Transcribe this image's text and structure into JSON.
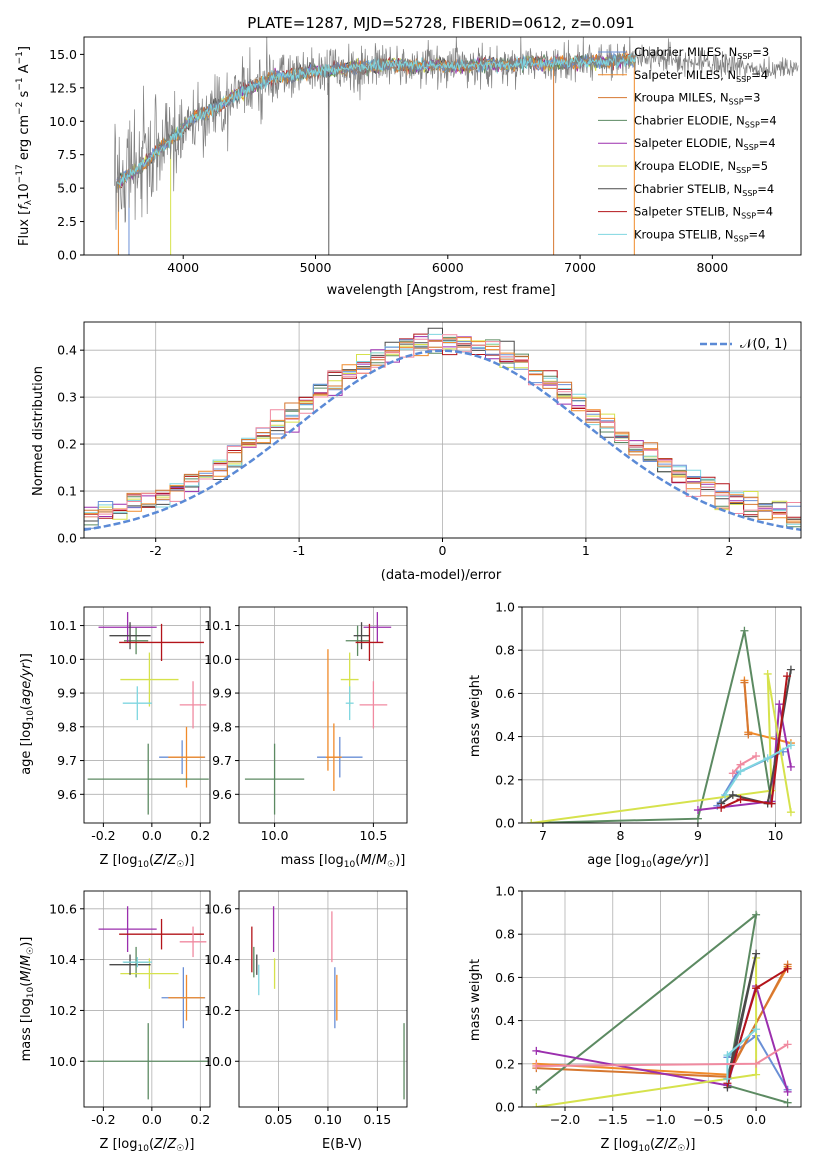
{
  "figure_title": "PLATE=1287, MJD=52728, FIBERID=0612, z=0.091",
  "series_colors": [
    "#6a8fd6",
    "#f08a2a",
    "#d67730",
    "#5c8a62",
    "#9b2fae",
    "#d6e24c",
    "#4a4a4a",
    "#b3141a",
    "#7fd6e0",
    "#f08aa0"
  ],
  "legend": [
    "Chabrier MILES, N_SSP=3",
    "Salpeter MILES, N_SSP=4",
    "Kroupa MILES, N_SSP=3",
    "Chabrier ELODIE, N_SSP=4",
    "Salpeter ELODIE, N_SSP=4",
    "Kroupa ELODIE, N_SSP=5",
    "Chabrier STELIB, N_SSP=4",
    "Salpeter STELIB, N_SSP=4",
    "Kroupa STELIB, N_SSP=4"
  ],
  "panel2_legend": "𝒩(0, 1)",
  "chart_data": [
    {
      "id": "spectrum",
      "type": "line",
      "xlabel": "wavelength [Angstrom, rest frame]",
      "ylabel": "Flux [f_λ 10^-17 erg cm^-2 s^-1 A^-1]",
      "xlim": [
        3250,
        8670
      ],
      "ylim": [
        0,
        16.3
      ],
      "xticks": [
        4000,
        5000,
        6000,
        7000,
        8000
      ],
      "yticks": [
        0.0,
        2.5,
        5.0,
        7.5,
        10.0,
        12.5,
        15.0
      ],
      "data_color": "#808080",
      "data_envelope": {
        "x": [
          3500,
          3700,
          3900,
          4100,
          4300,
          4500,
          4700,
          5000,
          5500,
          6000,
          6500,
          7000,
          7500,
          8000,
          8400
        ],
        "y": [
          5.3,
          6.8,
          8.6,
          10.4,
          11.3,
          12.5,
          13.3,
          13.7,
          14.2,
          14.1,
          14.3,
          14.4,
          14.6,
          14.3,
          13.9
        ],
        "noise": [
          3.5,
          3.2,
          3.0,
          2.4,
          2.0,
          1.8,
          1.7,
          1.5,
          1.3,
          1.3,
          1.2,
          1.2,
          0.9,
          0.7,
          0.6
        ]
      },
      "model_range": [
        3500,
        7420
      ]
    },
    {
      "id": "residuals",
      "type": "line",
      "xlabel": "(data-model)/error",
      "ylabel": "Normed distribution",
      "xlim": [
        -2.5,
        2.5
      ],
      "ylim": [
        0,
        0.46
      ],
      "xticks": [
        -2,
        -1,
        0,
        1,
        2
      ],
      "yticks": [
        0.0,
        0.1,
        0.2,
        0.3,
        0.4
      ],
      "bin_width": 0.1
    },
    {
      "id": "age_vs_Z",
      "type": "scatter",
      "xlabel": "Z [log10(Z/Z☉)]",
      "ylabel": "age  [log10(age/yr)]",
      "xlim": [
        -0.28,
        0.24
      ],
      "ylim": [
        9.515,
        10.155
      ],
      "xticks": [
        -0.2,
        0.0,
        0.2
      ],
      "yticks": [
        9.6,
        9.7,
        9.8,
        9.9,
        10.0,
        10.1
      ],
      "points": [
        {
          "s": 0,
          "x": 0.125,
          "y": 9.71,
          "ex": 0.095,
          "ey": 0.05
        },
        {
          "s": 1,
          "x": 0.143,
          "y": 9.71,
          "ex": 0.075,
          "ey": 0.09
        },
        {
          "s": 3,
          "x": -0.015,
          "y": 9.645,
          "ex": 0.25,
          "ey": 0.105
        },
        {
          "s": 3,
          "x": -0.065,
          "y": 10.055,
          "ex": 0.05,
          "ey": 0.04
        },
        {
          "s": 4,
          "x": -0.1,
          "y": 10.095,
          "ex": 0.12,
          "ey": 0.045
        },
        {
          "s": 5,
          "x": -0.01,
          "y": 9.94,
          "ex": 0.12,
          "ey": 0.08
        },
        {
          "s": 6,
          "x": -0.09,
          "y": 10.07,
          "ex": 0.085,
          "ey": 0.04
        },
        {
          "s": 7,
          "x": 0.04,
          "y": 10.05,
          "ex": 0.175,
          "ey": 0.055
        },
        {
          "s": 8,
          "x": -0.06,
          "y": 9.87,
          "ex": 0.06,
          "ey": 0.05
        },
        {
          "s": 9,
          "x": 0.17,
          "y": 9.865,
          "ex": 0.055,
          "ey": 0.07
        }
      ]
    },
    {
      "id": "age_vs_mass",
      "type": "scatter",
      "xlabel": "mass [log10(M/M☉)]",
      "ylabel": "",
      "xlim": [
        9.82,
        10.67
      ],
      "ylim": [
        9.515,
        10.155
      ],
      "xticks": [
        10.0,
        10.5
      ],
      "yticks": [
        9.6,
        9.7,
        9.8,
        9.9,
        10.0,
        10.1
      ],
      "points": [
        {
          "s": 0,
          "x": 10.33,
          "y": 9.71,
          "ex": 0.115,
          "ey": 0.06
        },
        {
          "s": 1,
          "x": 10.3,
          "y": 9.71,
          "ex": 0.04,
          "ey": 0.1
        },
        {
          "s": 3,
          "x": 10.0,
          "y": 9.645,
          "ex": 0.15,
          "ey": 0.105
        },
        {
          "s": 3,
          "x": 10.42,
          "y": 10.055,
          "ex": 0.06,
          "ey": 0.045
        },
        {
          "s": 4,
          "x": 10.52,
          "y": 10.095,
          "ex": 0.07,
          "ey": 0.045
        },
        {
          "s": 5,
          "x": 10.38,
          "y": 9.94,
          "ex": 0.045,
          "ey": 0.08
        },
        {
          "s": 6,
          "x": 10.44,
          "y": 10.07,
          "ex": 0.04,
          "ey": 0.04
        },
        {
          "s": 7,
          "x": 10.48,
          "y": 10.05,
          "ex": 0.07,
          "ey": 0.055
        },
        {
          "s": 8,
          "x": 10.38,
          "y": 9.87,
          "ex": 0.02,
          "ey": 0.05
        },
        {
          "s": 9,
          "x": 10.5,
          "y": 9.865,
          "ex": 0.07,
          "ey": 0.07
        },
        {
          "s": 1,
          "x": 10.27,
          "y": 9.85,
          "ex": 0.0,
          "ey": 0.18
        }
      ]
    },
    {
      "id": "weight_vs_age",
      "type": "line",
      "xlabel": "age  [log10(age/yr)]",
      "ylabel": "mass weight",
      "xlim": [
        6.73,
        10.33
      ],
      "ylim": [
        0,
        1.0
      ],
      "xticks": [
        7,
        8,
        9,
        10
      ],
      "yticks": [
        0.0,
        0.2,
        0.4,
        0.6,
        0.8,
        1.0
      ],
      "series": [
        {
          "s": 0,
          "x": [
            9.25,
            9.5,
            10.1
          ],
          "y": [
            0.08,
            0.23,
            0.33
          ]
        },
        {
          "s": 1,
          "x": [
            9.6,
            9.65,
            10.2
          ],
          "y": [
            0.66,
            0.42,
            0.37
          ]
        },
        {
          "s": 2,
          "x": [
            9.6,
            9.65
          ],
          "y": [
            0.65,
            0.41
          ]
        },
        {
          "s": 3,
          "x": [
            6.85,
            9.0,
            9.6,
            9.95
          ],
          "y": [
            0.0,
            0.02,
            0.89,
            0.09
          ]
        },
        {
          "s": 4,
          "x": [
            9.0,
            9.95,
            10.05,
            10.2
          ],
          "y": [
            0.06,
            0.1,
            0.55,
            0.26
          ]
        },
        {
          "s": 5,
          "x": [
            6.85,
            9.95,
            9.9,
            10.2
          ],
          "y": [
            0.0,
            0.15,
            0.69,
            0.05
          ]
        },
        {
          "s": 6,
          "x": [
            9.3,
            9.45,
            9.9,
            10.2
          ],
          "y": [
            0.09,
            0.13,
            0.09,
            0.71
          ]
        },
        {
          "s": 7,
          "x": [
            9.3,
            9.55,
            9.95,
            10.15
          ],
          "y": [
            0.07,
            0.11,
            0.09,
            0.68
          ]
        },
        {
          "s": 8,
          "x": [
            9.35,
            9.55,
            9.9,
            10.2
          ],
          "y": [
            0.13,
            0.24,
            0.3,
            0.36
          ]
        },
        {
          "s": 9,
          "x": [
            9.45,
            9.55,
            9.75
          ],
          "y": [
            0.23,
            0.27,
            0.31
          ]
        }
      ]
    },
    {
      "id": "mass_vs_Z",
      "type": "scatter",
      "xlabel": "Z [log10(Z/Z☉)]",
      "ylabel": "mass [log10(M/M☉)]",
      "xlim": [
        -0.28,
        0.24
      ],
      "ylim": [
        9.82,
        10.67
      ],
      "xticks": [
        -0.2,
        0.0,
        0.2
      ],
      "yticks": [
        10.0,
        10.2,
        10.4,
        10.6
      ],
      "points": [
        {
          "s": 0,
          "x": 0.13,
          "y": 10.25,
          "ex": 0.09,
          "ey": 0.12
        },
        {
          "s": 1,
          "x": 0.143,
          "y": 10.25,
          "ex": 0.075,
          "ey": 0.09
        },
        {
          "s": 3,
          "x": -0.015,
          "y": 10.0,
          "ex": 0.25,
          "ey": 0.15
        },
        {
          "s": 3,
          "x": -0.065,
          "y": 10.39,
          "ex": 0.05,
          "ey": 0.06
        },
        {
          "s": 4,
          "x": -0.1,
          "y": 10.52,
          "ex": 0.12,
          "ey": 0.09
        },
        {
          "s": 5,
          "x": -0.01,
          "y": 10.345,
          "ex": 0.12,
          "ey": 0.06
        },
        {
          "s": 6,
          "x": -0.09,
          "y": 10.38,
          "ex": 0.085,
          "ey": 0.04
        },
        {
          "s": 7,
          "x": 0.04,
          "y": 10.5,
          "ex": 0.175,
          "ey": 0.06
        },
        {
          "s": 8,
          "x": -0.06,
          "y": 10.39,
          "ex": 0.06,
          "ey": 0.02
        },
        {
          "s": 9,
          "x": 0.17,
          "y": 10.47,
          "ex": 0.055,
          "ey": 0.06
        }
      ]
    },
    {
      "id": "mass_vs_EBV",
      "type": "scatter",
      "xlabel": "E(B-V)",
      "ylabel": "",
      "xlim": [
        0.01,
        0.18
      ],
      "ylim": [
        9.82,
        10.67
      ],
      "xticks": [
        0.05,
        0.1,
        0.15
      ],
      "yticks": [
        10.0,
        10.2,
        10.4,
        10.6
      ],
      "points": [
        {
          "s": 0,
          "x": 0.107,
          "y": 10.25,
          "ey": 0.12
        },
        {
          "s": 1,
          "x": 0.109,
          "y": 10.25,
          "ey": 0.09
        },
        {
          "s": 3,
          "x": 0.177,
          "y": 10.0,
          "ey": 0.15
        },
        {
          "s": 3,
          "x": 0.025,
          "y": 10.39,
          "ey": 0.06
        },
        {
          "s": 4,
          "x": 0.045,
          "y": 10.52,
          "ey": 0.09
        },
        {
          "s": 5,
          "x": 0.046,
          "y": 10.345,
          "ey": 0.06
        },
        {
          "s": 6,
          "x": 0.028,
          "y": 10.38,
          "ey": 0.04
        },
        {
          "s": 7,
          "x": 0.023,
          "y": 10.44,
          "ey": 0.09
        },
        {
          "s": 8,
          "x": 0.03,
          "y": 10.32,
          "ey": 0.06
        },
        {
          "s": 9,
          "x": 0.104,
          "y": 10.49,
          "ey": 0.1
        }
      ]
    },
    {
      "id": "weight_vs_Z",
      "type": "line",
      "xlabel": "Z [log10(Z/Z☉)]",
      "ylabel": "mass weight",
      "xlim": [
        -2.45,
        0.47
      ],
      "ylim": [
        0,
        1.0
      ],
      "xticks": [
        -2.0,
        -1.5,
        -1.0,
        -0.5,
        0.0
      ],
      "yticks": [
        0.0,
        0.2,
        0.4,
        0.6,
        0.8,
        1.0
      ],
      "series": [
        {
          "s": 0,
          "x": [
            -0.3,
            0.0,
            0.33
          ],
          "y": [
            0.23,
            0.33,
            0.08
          ]
        },
        {
          "s": 1,
          "x": [
            -2.3,
            -0.3,
            0.33
          ],
          "y": [
            0.2,
            0.15,
            0.65
          ]
        },
        {
          "s": 2,
          "x": [
            -2.3,
            -0.3,
            0.33
          ],
          "y": [
            0.18,
            0.14,
            0.66
          ]
        },
        {
          "s": 3,
          "x": [
            -2.3,
            0.0,
            -0.3,
            0.33
          ],
          "y": [
            0.08,
            0.89,
            0.1,
            0.02
          ]
        },
        {
          "s": 4,
          "x": [
            -2.3,
            -0.3,
            0.0,
            0.33
          ],
          "y": [
            0.26,
            0.1,
            0.56,
            0.07
          ]
        },
        {
          "s": 5,
          "x": [
            -2.3,
            0.0,
            0.0
          ],
          "y": [
            0.0,
            0.15,
            0.69
          ]
        },
        {
          "s": 6,
          "x": [
            -0.3,
            0.0,
            -0.3
          ],
          "y": [
            0.09,
            0.71,
            0.13
          ]
        },
        {
          "s": 7,
          "x": [
            -0.3,
            0.0,
            0.33
          ],
          "y": [
            0.11,
            0.55,
            0.64
          ]
        },
        {
          "s": 8,
          "x": [
            -0.3,
            -0.3,
            0.0
          ],
          "y": [
            0.13,
            0.24,
            0.36
          ]
        },
        {
          "s": 9,
          "x": [
            -2.3,
            0.0,
            0.33
          ],
          "y": [
            0.19,
            0.2,
            0.29
          ]
        }
      ]
    }
  ]
}
